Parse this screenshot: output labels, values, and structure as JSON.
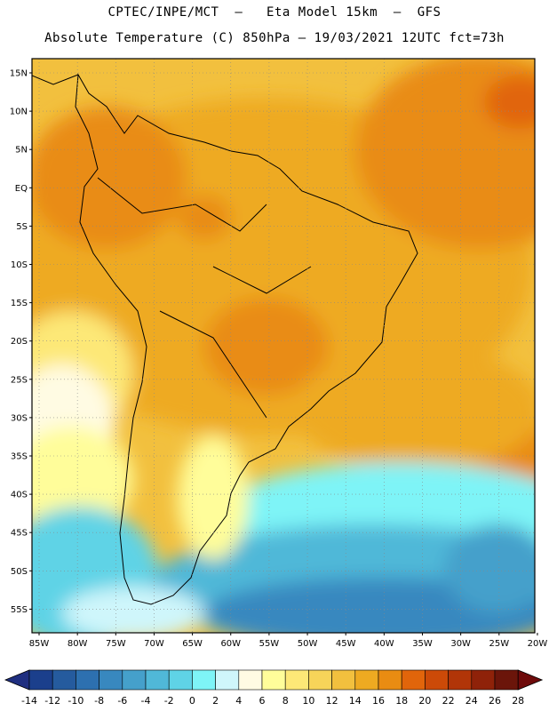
{
  "header": {
    "line1": "CPTEC/INPE/MCT  –   Eta Model 15km  –  GFS",
    "line2": "Absolute Temperature (C) 850hPa – 19/03/2021 12UTC fct=73h"
  },
  "map": {
    "lat_labels": [
      "15N",
      "10N",
      "5N",
      "EQ",
      "5S",
      "10S",
      "15S",
      "20S",
      "25S",
      "30S",
      "35S",
      "40S",
      "45S",
      "50S",
      "55S"
    ],
    "lon_labels": [
      "85W",
      "80W",
      "75W",
      "70W",
      "65W",
      "60W",
      "55W",
      "50W",
      "45W",
      "40W",
      "35W",
      "30W",
      "25W",
      "20W"
    ],
    "lon_range": [
      -85,
      -20
    ],
    "lat_range": [
      -58,
      16
    ]
  },
  "colorbar": {
    "ticks": [
      "-14",
      "-12",
      "-10",
      "-8",
      "-6",
      "-4",
      "-2",
      "0",
      "2",
      "4",
      "6",
      "8",
      "10",
      "12",
      "14",
      "16",
      "18",
      "20",
      "22",
      "24",
      "26",
      "28"
    ],
    "colors": [
      "#1b3f8c",
      "#255b9e",
      "#2d70b0",
      "#3888bf",
      "#45a0cb",
      "#50b8d8",
      "#5fd3e6",
      "#7ef4f7",
      "#cff6fb",
      "#fffbe3",
      "#fffd9a",
      "#fde877",
      "#f7d459",
      "#f2c03e",
      "#eeaa21",
      "#e98c12",
      "#e1650b",
      "#cc4a08",
      "#b13508",
      "#8f2209",
      "#6b150a"
    ],
    "min_color": "#1f2f80",
    "max_color": "#6e0a0a"
  }
}
